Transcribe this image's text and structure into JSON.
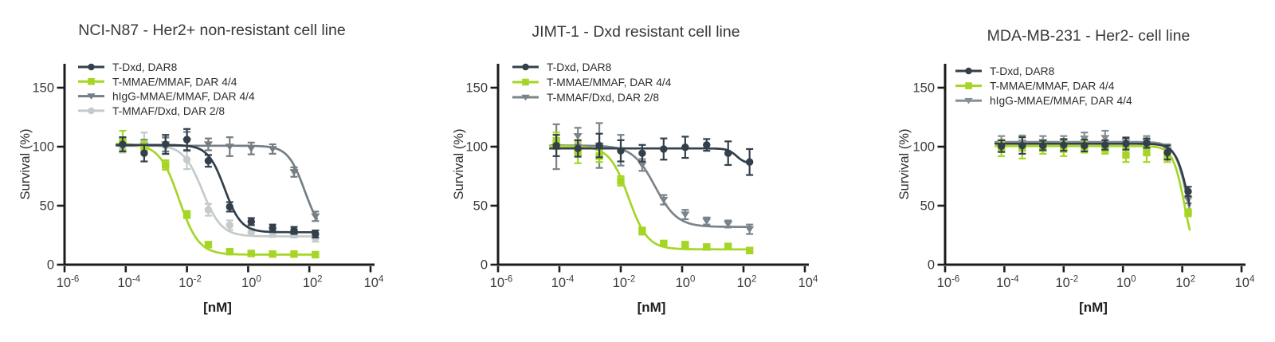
{
  "figure": {
    "background": "#ffffff",
    "axis_color": "#1c1c1c",
    "tick_label_color": "#3c3c3c",
    "title_color": "#383838",
    "legend_text_color": "#2d2d2d",
    "xtick_base": "10"
  },
  "chart_data": [
    {
      "type": "line",
      "title": "NCI-N87 - Her2+ non-resistant cell line",
      "xlabel": "[nM]",
      "ylabel": "Survival (%)",
      "xscale": "log",
      "xlim_log": [
        -6,
        4
      ],
      "ylim": [
        0,
        170
      ],
      "xticks_log": [
        -6,
        -4,
        -2,
        0,
        2,
        4
      ],
      "yticks": [
        0,
        50,
        100,
        150
      ],
      "grid": false,
      "legend_position": "upper-left-inside",
      "x_nM": [
        7.94e-05,
        0.0004,
        0.002,
        0.01,
        0.05,
        0.25,
        1.26,
        6.3,
        31.6,
        158
      ],
      "series": [
        {
          "name": "T-Dxd, DAR8",
          "color": "#33404b",
          "marker": "circle",
          "y": [
            102,
            94.5,
            102,
            106,
            88,
            49,
            36.5,
            31,
            29,
            26
          ],
          "err": [
            6,
            7,
            8,
            9,
            5,
            4,
            3,
            3,
            3,
            3
          ],
          "fit": {
            "top": 101.5,
            "bottom": 27.5,
            "ic50": 0.17,
            "hill": 1.6
          }
        },
        {
          "name": "T-MMAE/MMAF, DAR 4/4",
          "color": "#a5d625",
          "marker": "square",
          "y": [
            105.5,
            100,
            84.5,
            42.5,
            17,
            11,
            9.5,
            9,
            9,
            8.5
          ],
          "err": [
            8,
            5,
            4,
            3,
            2,
            2,
            1.5,
            1.5,
            1.5,
            1.5
          ],
          "fit": {
            "top": 102.5,
            "bottom": 8.5,
            "ic50": 0.0055,
            "hill": 1.35
          }
        },
        {
          "name": "hIgG-MMAE/MMAF, DAR 4/4",
          "color": "#747e85",
          "marker": "triangle-down",
          "y": [
            100,
            101,
            102,
            104.5,
            102,
            100,
            98.5,
            98,
            78.5,
            41
          ],
          "err": [
            4,
            5,
            6,
            8,
            5,
            8,
            5,
            4,
            4,
            4
          ],
          "fit": {
            "top": 100.8,
            "bottom": 25,
            "ic50": 70,
            "hill": 1.6
          }
        },
        {
          "name": "T-MMAF/Dxd, DAR 2/8",
          "color": "#c4cbca",
          "marker": "circle",
          "y": [
            100,
            103,
            100.5,
            89,
            46.5,
            33.5,
            27.5,
            26.5,
            26,
            22.5
          ],
          "err": [
            5,
            9,
            7,
            8,
            5,
            4,
            3,
            3,
            3,
            3
          ],
          "fit": {
            "top": 101.5,
            "bottom": 24,
            "ic50": 0.032,
            "hill": 1.4
          }
        }
      ]
    },
    {
      "type": "line",
      "title": "JIMT-1 - Dxd resistant cell line",
      "xlabel": "[nM]",
      "ylabel": "Survival (%)",
      "xscale": "log",
      "xlim_log": [
        -6,
        4
      ],
      "ylim": [
        0,
        170
      ],
      "xticks_log": [
        -6,
        -4,
        -2,
        0,
        2,
        4
      ],
      "yticks": [
        0,
        50,
        100,
        150
      ],
      "grid": false,
      "legend_position": "upper-left-inside",
      "x_nM": [
        7.94e-05,
        0.0004,
        0.002,
        0.01,
        0.05,
        0.25,
        1.26,
        6.3,
        31.6,
        158
      ],
      "series": [
        {
          "name": "T-Dxd, DAR8",
          "color": "#33404b",
          "marker": "circle",
          "y": [
            101,
            98.5,
            101,
            96.5,
            94.5,
            98,
            99.5,
            101.5,
            94.5,
            87
          ],
          "err": [
            9,
            7,
            10,
            9,
            7,
            9,
            9,
            5,
            10,
            11
          ],
          "fit": {
            "top": 98.5,
            "bottom": 85.5,
            "ic50": 60,
            "hill": 3
          }
        },
        {
          "name": "T-MMAE/MMAF, DAR 4/4",
          "color": "#a5d625",
          "marker": "square",
          "y": [
            105,
            95,
            92,
            71,
            28.5,
            18,
            17,
            15,
            15.5,
            12
          ],
          "err": [
            7,
            9,
            5,
            4,
            3,
            2,
            2,
            2,
            2,
            2
          ],
          "fit": {
            "top": 100.5,
            "bottom": 13,
            "ic50": 0.018,
            "hill": 1.4
          }
        },
        {
          "name": "T-MMAF/Dxd, DAR 2/8",
          "color": "#7b848a",
          "marker": "triangle-down",
          "y": [
            100,
            109,
            101,
            97,
            84.5,
            55,
            42.5,
            37,
            34.5,
            30
          ],
          "err": [
            19,
            7,
            19,
            13,
            5,
            4,
            4,
            3,
            3,
            4
          ],
          "fit": {
            "top": 101,
            "bottom": 32,
            "ic50": 0.13,
            "hill": 1.2
          }
        }
      ]
    },
    {
      "type": "line",
      "title": "MDA-MB-231 - Her2- cell line",
      "xlabel": "[nM]",
      "ylabel": "Survival (%)",
      "xscale": "log",
      "xlim_log": [
        -6,
        4
      ],
      "ylim": [
        0,
        170
      ],
      "xticks_log": [
        -6,
        -4,
        -2,
        0,
        2,
        4
      ],
      "yticks": [
        0,
        50,
        100,
        150
      ],
      "grid": false,
      "legend_position": "upper-left-inside",
      "x_nM": [
        7.94e-05,
        0.0004,
        0.002,
        0.01,
        0.05,
        0.25,
        1.26,
        6.3,
        31.6,
        158
      ],
      "series": [
        {
          "name": "T-Dxd, DAR8",
          "color": "#33404b",
          "marker": "circle",
          "y": [
            100.5,
            101,
            101,
            101.5,
            101,
            101.5,
            102.5,
            103,
            95,
            62
          ],
          "err": [
            5,
            7,
            4,
            5,
            5,
            4,
            5,
            4,
            6,
            4
          ],
          "fit": {
            "top": 102.5,
            "bottom": 0,
            "ic50": 175,
            "hill": 2
          }
        },
        {
          "name": "T-MMAE/MMAF, DAR 4/4",
          "color": "#a5d625",
          "marker": "square",
          "y": [
            98,
            99,
            99,
            98,
            100,
            98,
            93,
            95,
            92,
            44
          ],
          "err": [
            6,
            9,
            5,
            6,
            5,
            4,
            6,
            8,
            5,
            3
          ],
          "fit": {
            "top": 100.5,
            "bottom": 0,
            "ic50": 120,
            "hill": 2.2
          }
        },
        {
          "name": "hIgG-MMAE/MMAF, DAR 4/4",
          "color": "#878f94",
          "marker": "triangle-down",
          "y": [
            103,
            103.5,
            104,
            104,
            107,
            107.5,
            104,
            104,
            97,
            55
          ],
          "err": [
            6,
            6,
            5,
            5,
            5,
            6,
            4,
            5,
            5,
            3
          ],
          "fit": {
            "top": 104,
            "bottom": 0,
            "ic50": 160,
            "hill": 2
          }
        }
      ]
    }
  ]
}
